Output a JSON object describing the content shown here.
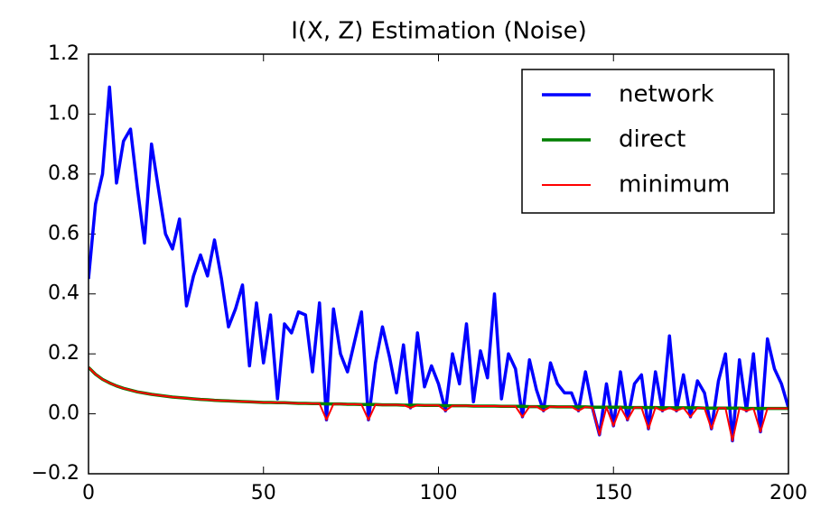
{
  "chart_data": {
    "type": "line",
    "title": "I(X, Z) Estimation (Noise)",
    "x": [
      0,
      2,
      4,
      6,
      8,
      10,
      12,
      14,
      16,
      18,
      20,
      22,
      24,
      26,
      28,
      30,
      32,
      34,
      36,
      38,
      40,
      42,
      44,
      46,
      48,
      50,
      52,
      54,
      56,
      58,
      60,
      62,
      64,
      66,
      68,
      70,
      72,
      74,
      76,
      78,
      80,
      82,
      84,
      86,
      88,
      90,
      92,
      94,
      96,
      98,
      100,
      102,
      104,
      106,
      108,
      110,
      112,
      114,
      116,
      118,
      120,
      122,
      124,
      126,
      128,
      130,
      132,
      134,
      136,
      138,
      140,
      142,
      144,
      146,
      148,
      150,
      152,
      154,
      156,
      158,
      160,
      162,
      164,
      166,
      168,
      170,
      172,
      174,
      176,
      178,
      180,
      182,
      184,
      186,
      188,
      190,
      192,
      194,
      196,
      198,
      200
    ],
    "series": [
      {
        "name": "network",
        "color": "#0000ff",
        "width": 3.5,
        "values": [
          0.45,
          0.7,
          0.8,
          1.09,
          0.77,
          0.91,
          0.95,
          0.75,
          0.57,
          0.9,
          0.75,
          0.6,
          0.55,
          0.65,
          0.36,
          0.46,
          0.53,
          0.46,
          0.58,
          0.45,
          0.29,
          0.35,
          0.43,
          0.16,
          0.37,
          0.17,
          0.33,
          0.05,
          0.3,
          0.27,
          0.34,
          0.33,
          0.14,
          0.37,
          -0.02,
          0.35,
          0.2,
          0.14,
          0.24,
          0.34,
          -0.02,
          0.17,
          0.29,
          0.19,
          0.07,
          0.23,
          0.02,
          0.27,
          0.09,
          0.16,
          0.1,
          0.01,
          0.2,
          0.1,
          0.3,
          0.04,
          0.21,
          0.12,
          0.4,
          0.05,
          0.2,
          0.15,
          -0.01,
          0.18,
          0.08,
          0.01,
          0.17,
          0.1,
          0.07,
          0.07,
          0.01,
          0.14,
          0.02,
          -0.07,
          0.1,
          -0.04,
          0.14,
          -0.02,
          0.1,
          0.13,
          -0.05,
          0.14,
          0.01,
          0.26,
          0.01,
          0.13,
          -0.01,
          0.11,
          0.07,
          -0.05,
          0.11,
          0.2,
          -0.09,
          0.18,
          0.01,
          0.2,
          -0.06,
          0.25,
          0.15,
          0.1,
          0.02
        ]
      },
      {
        "name": "direct",
        "color": "#007f00",
        "width": 3.5,
        "values": [
          0.155,
          0.132,
          0.115,
          0.103,
          0.093,
          0.085,
          0.079,
          0.073,
          0.069,
          0.065,
          0.062,
          0.059,
          0.056,
          0.054,
          0.052,
          0.05,
          0.048,
          0.047,
          0.045,
          0.044,
          0.043,
          0.042,
          0.041,
          0.04,
          0.039,
          0.038,
          0.038,
          0.037,
          0.037,
          0.036,
          0.035,
          0.035,
          0.034,
          0.034,
          0.033,
          0.033,
          0.033,
          0.032,
          0.032,
          0.031,
          0.031,
          0.031,
          0.03,
          0.03,
          0.03,
          0.029,
          0.029,
          0.029,
          0.028,
          0.028,
          0.028,
          0.027,
          0.027,
          0.027,
          0.027,
          0.026,
          0.026,
          0.026,
          0.026,
          0.025,
          0.025,
          0.025,
          0.025,
          0.024,
          0.024,
          0.024,
          0.024,
          0.023,
          0.023,
          0.023,
          0.023,
          0.023,
          0.022,
          0.022,
          0.022,
          0.022,
          0.022,
          0.021,
          0.021,
          0.021,
          0.021,
          0.021,
          0.02,
          0.02,
          0.02,
          0.02,
          0.02,
          0.02,
          0.019,
          0.019,
          0.019,
          0.019,
          0.019,
          0.019,
          0.018,
          0.018,
          0.018,
          0.018,
          0.018,
          0.018,
          0.018
        ]
      },
      {
        "name": "minimum",
        "color": "#ff0000",
        "width": 2,
        "values": [
          0.155,
          0.132,
          0.115,
          0.103,
          0.093,
          0.085,
          0.079,
          0.073,
          0.069,
          0.065,
          0.062,
          0.059,
          0.056,
          0.054,
          0.052,
          0.05,
          0.048,
          0.047,
          0.045,
          0.044,
          0.043,
          0.042,
          0.041,
          0.04,
          0.039,
          0.038,
          0.038,
          0.037,
          0.037,
          0.036,
          0.035,
          0.035,
          0.034,
          0.034,
          -0.02,
          0.033,
          0.033,
          0.032,
          0.032,
          0.031,
          -0.02,
          0.031,
          0.03,
          0.03,
          0.03,
          0.029,
          0.02,
          0.029,
          0.028,
          0.028,
          0.028,
          0.01,
          0.027,
          0.027,
          0.027,
          0.026,
          0.026,
          0.026,
          0.026,
          0.025,
          0.025,
          0.025,
          -0.01,
          0.024,
          0.024,
          0.01,
          0.024,
          0.023,
          0.023,
          0.023,
          0.01,
          0.023,
          0.02,
          -0.07,
          0.022,
          -0.04,
          0.022,
          -0.02,
          0.021,
          0.021,
          -0.05,
          0.021,
          0.01,
          0.02,
          0.01,
          0.02,
          -0.01,
          0.02,
          0.019,
          -0.05,
          0.019,
          0.019,
          -0.09,
          0.019,
          0.01,
          0.018,
          -0.06,
          0.018,
          0.018,
          0.018,
          0.018
        ]
      }
    ],
    "xlim": [
      0,
      200
    ],
    "xticks": [
      0,
      50,
      100,
      150,
      200
    ],
    "ylim": [
      -0.2,
      1.2
    ],
    "yticks": [
      {
        "value": -0.2,
        "label": "−0.2"
      },
      {
        "value": 0,
        "label": "0.0"
      },
      0.2,
      0.4,
      0.6,
      0.8,
      {
        "value": 1,
        "label": "1.0"
      },
      1.2
    ],
    "legend": "upper right",
    "grid": false
  }
}
